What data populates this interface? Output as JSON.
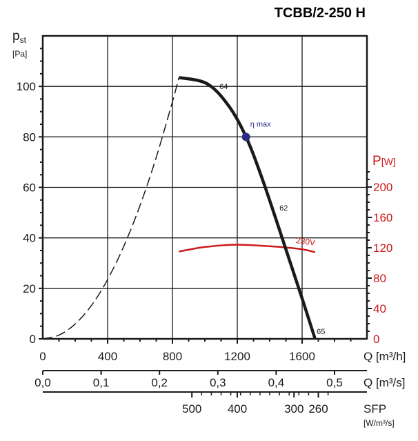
{
  "chart_data": {
    "type": "line",
    "title": "TCBB/2-250 H",
    "xlabel": "Q [m³/h]",
    "x2label": "Q [m³/s]",
    "sfp_label": "SFP",
    "sfp_unit": "[W/m³/s]",
    "ylabel_main": "p",
    "ylabel_sub": "st",
    "ylabel_unit": "[Pa]",
    "y2label_main": "P",
    "y2label_unit": "[W]",
    "xlim": [
      0,
      2000
    ],
    "ylim": [
      0,
      120
    ],
    "y2lim": [
      0,
      399
    ],
    "grid": true,
    "x_ticks": [
      "0",
      "400",
      "800",
      "1200",
      "1600"
    ],
    "x_tick_values": [
      0,
      400,
      800,
      1200,
      1600
    ],
    "x2_ticks": [
      "0,0",
      "0,1",
      "0,2",
      "0,3",
      "0,4",
      "0,5"
    ],
    "x2_tick_values": [
      0,
      0.1,
      0.2,
      0.3,
      0.4,
      0.5
    ],
    "y_ticks": [
      "0",
      "20",
      "40",
      "60",
      "80",
      "100"
    ],
    "y_tick_values": [
      0,
      20,
      40,
      60,
      80,
      100
    ],
    "y2_ticks": [
      "0",
      "40",
      "80",
      "120",
      "160",
      "200"
    ],
    "y2_tick_values": [
      0,
      40,
      80,
      120,
      160,
      200
    ],
    "sfp_ticks": [
      "500",
      "400",
      "300",
      "260"
    ],
    "sfp_tick_q": [
      920,
      1200,
      1550,
      1700
    ],
    "colors": {
      "pressure": "#1a1a1a",
      "power": "#cc1a1a",
      "eta_marker": "#2b2b8a",
      "axis_red": "#cc1a1a"
    },
    "series": [
      {
        "name": "pressure curve",
        "x": [
          840,
          1015,
          1150,
          1254,
          1356,
          1484,
          1595,
          1680
        ],
        "y": [
          103.5,
          101,
          92,
          80,
          63,
          38.6,
          17,
          0
        ],
        "point_labels": [
          {
            "text": "64",
            "x": 1090,
            "y": 100
          },
          {
            "text": "62",
            "x": 1460,
            "y": 52
          },
          {
            "text": "65",
            "x": 1690,
            "y": 3
          }
        ]
      },
      {
        "name": "system curve (dashed)",
        "x": [
          0,
          100,
          200,
          300,
          400,
          500,
          600,
          700,
          800,
          840
        ],
        "y": [
          0,
          1.47,
          5.9,
          13.2,
          23.5,
          36.7,
          52.8,
          71.9,
          93.9,
          103.5
        ]
      },
      {
        "name": "230V",
        "axis": "right",
        "x": [
          840,
          1000,
          1185,
          1400,
          1600,
          1680
        ],
        "y": [
          115,
          121,
          124,
          122,
          118,
          114
        ]
      }
    ],
    "annotations": [
      {
        "text": "η max",
        "x": 1254,
        "y": 80
      },
      {
        "text": "230V",
        "x": 1560,
        "y": 38
      }
    ]
  }
}
